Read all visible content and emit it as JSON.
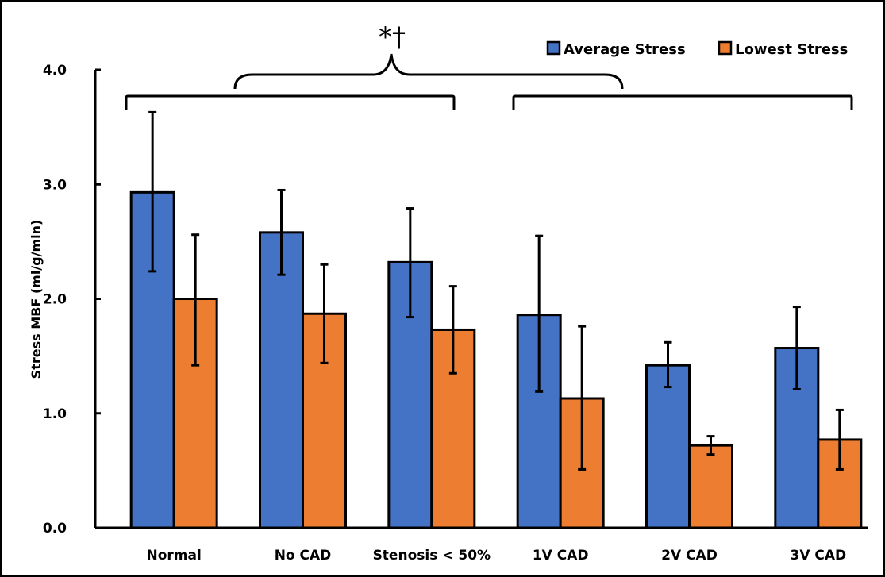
{
  "chart_data": {
    "type": "bar",
    "title": "",
    "xlabel": "",
    "ylabel": "Stress MBF (ml/g/min)",
    "ylim": [
      0,
      4.0
    ],
    "yticks": [
      "0.0",
      "1.0",
      "2.0",
      "3.0",
      "4.0"
    ],
    "ytick_values": [
      0,
      1,
      2,
      3,
      4
    ],
    "grid": false,
    "legend_position": "top-right",
    "categories": [
      "Normal",
      "No CAD",
      "Stenosis < 50%",
      "1V CAD",
      "2V CAD",
      "3V CAD"
    ],
    "series": [
      {
        "name": "Average Stress",
        "color": "#4472C4",
        "values": [
          2.93,
          2.58,
          2.32,
          1.86,
          1.42,
          1.57
        ],
        "error_upper": [
          3.63,
          2.95,
          2.79,
          2.55,
          1.62,
          1.93
        ],
        "error_lower": [
          2.24,
          2.21,
          1.84,
          1.19,
          1.23,
          1.21
        ]
      },
      {
        "name": "Lowest Stress",
        "color": "#ED7D31",
        "values": [
          2.0,
          1.87,
          1.73,
          1.13,
          0.72,
          0.77
        ],
        "error_upper": [
          2.56,
          2.3,
          2.11,
          1.76,
          0.8,
          1.03
        ],
        "error_lower": [
          1.42,
          1.44,
          1.35,
          0.51,
          0.64,
          0.51
        ]
      }
    ],
    "annotations": [
      {
        "text": "*†",
        "description": "Significance bracket comparing group (Normal, No CAD, Stenosis < 50%) vs group (1V CAD, 2V CAD, 3V CAD)",
        "groups": [
          [
            "Normal",
            "No CAD",
            "Stenosis < 50%"
          ],
          [
            "1V CAD",
            "2V CAD",
            "3V CAD"
          ]
        ]
      }
    ]
  }
}
